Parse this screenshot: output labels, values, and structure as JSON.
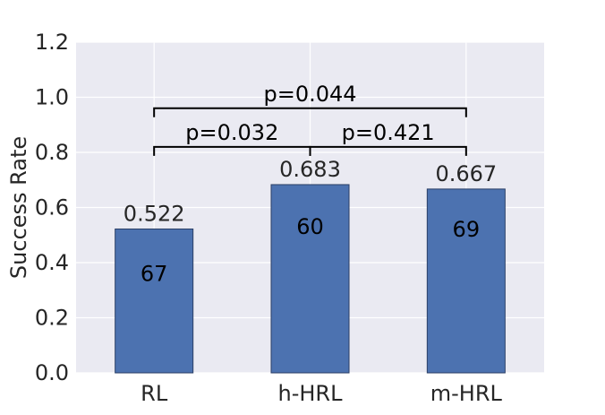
{
  "chart_data": {
    "type": "bar",
    "categories": [
      "RL",
      "h-HRL",
      "m-HRL"
    ],
    "values": [
      0.522,
      0.683,
      0.667
    ],
    "value_labels": [
      "0.522",
      "0.683",
      "0.667"
    ],
    "inner_labels": [
      "67",
      "60",
      "69"
    ],
    "inner_label_values": [
      0.36,
      0.53,
      0.52
    ],
    "ylabel": "Success Rate",
    "xlabel": "",
    "title": "",
    "ylim": [
      0.0,
      1.2
    ],
    "yticks": [
      "0.0",
      "0.2",
      "0.4",
      "0.6",
      "0.8",
      "1.0",
      "1.2"
    ],
    "grid": true,
    "significance": [
      {
        "from": 0,
        "to": 1,
        "y": 0.82,
        "label": "p=0.032"
      },
      {
        "from": 1,
        "to": 2,
        "y": 0.82,
        "label": "p=0.421"
      },
      {
        "from": 0,
        "to": 2,
        "y": 0.96,
        "label": "p=0.044"
      }
    ],
    "colors": {
      "bar": "#4c72b0",
      "bar_edge": "#2b3f66",
      "plot_bg": "#eaeaf2",
      "grid": "#ffffff",
      "bracket": "#000000"
    }
  }
}
